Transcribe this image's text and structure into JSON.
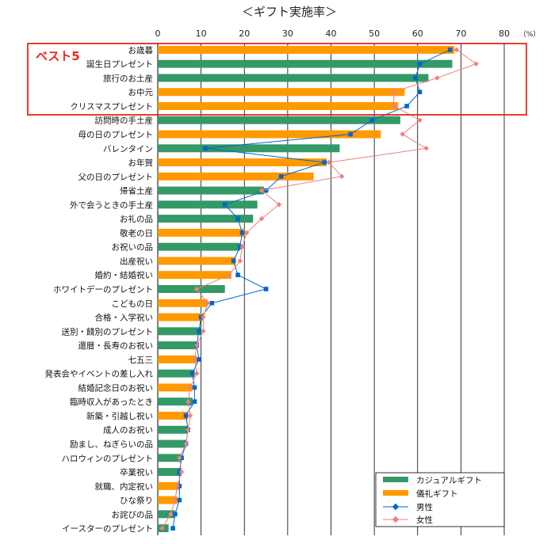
{
  "chart_data": {
    "type": "bar",
    "title": "＜ギフト実施率＞",
    "unit_label": "（%）",
    "xlim": [
      0,
      80
    ],
    "xticks": [
      0,
      10,
      20,
      30,
      40,
      50,
      60,
      70,
      80
    ],
    "grid": "vertical",
    "legend_position": "bottom-right",
    "highlight_label": "ベスト5",
    "highlight_categories": 5,
    "categories": [
      "お歳暮",
      "誕生日プレゼント",
      "旅行のお土産",
      "お中元",
      "クリスマスプレゼント",
      "訪問時の手土産",
      "母の日のプレゼント",
      "バレンタイン",
      "お年賀",
      "父の日のプレゼント",
      "帰省土産",
      "外で会うときの手土産",
      "お礼の品",
      "敬老の日",
      "お祝いの品",
      "出産祝い",
      "婚約・結婚祝い",
      "ホワイトデーのプレゼント",
      "こどもの日",
      "合格・入学祝い",
      "送別・餞別のプレゼント",
      "還暦・長寿のお祝い",
      "七五三",
      "発表会やイベントの差し入れ",
      "結婚記念日のお祝い",
      "臨時収入があったとき",
      "新築・引越し祝い",
      "成人のお祝い",
      "励まし、ねぎらいの品",
      "ハロウィンのプレゼント",
      "卒業祝い",
      "就職、内定祝い",
      "ひな祭り",
      "お詫びの品",
      "イースターのプレゼント"
    ],
    "bar_kind": [
      "formal",
      "casual",
      "casual",
      "formal",
      "formal",
      "casual",
      "formal",
      "casual",
      "formal",
      "formal",
      "casual",
      "casual",
      "casual",
      "formal",
      "casual",
      "formal",
      "formal",
      "casual",
      "formal",
      "formal",
      "casual",
      "casual",
      "formal",
      "casual",
      "formal",
      "casual",
      "formal",
      "casual",
      "casual",
      "casual",
      "casual",
      "formal",
      "formal",
      "casual",
      "casual"
    ],
    "values": [
      68.5,
      68.0,
      62.5,
      57.0,
      55.5,
      56.0,
      51.5,
      42.0,
      39.0,
      36.0,
      24.5,
      23.0,
      22.0,
      20.0,
      19.0,
      18.0,
      17.0,
      15.5,
      11.5,
      10.5,
      10.0,
      9.0,
      9.0,
      8.5,
      8.0,
      8.0,
      7.0,
      7.0,
      6.5,
      5.5,
      5.5,
      5.0,
      4.5,
      4.0,
      2.5
    ],
    "series": [
      {
        "name": "カジュアルギフト",
        "color": "#339966",
        "kind": "bar"
      },
      {
        "name": "儀礼ギフト",
        "color": "#ff9900",
        "kind": "bar"
      },
      {
        "name": "男性",
        "color": "#0066cc",
        "kind": "line",
        "values": [
          67.5,
          60.5,
          59.5,
          60.5,
          57.5,
          49.5,
          44.5,
          11.0,
          38.5,
          28.5,
          25.0,
          15.5,
          18.5,
          19.5,
          19.0,
          17.5,
          18.5,
          25.0,
          12.5,
          10.0,
          9.5,
          9.0,
          9.5,
          8.0,
          8.5,
          8.5,
          6.5,
          7.0,
          6.5,
          5.5,
          5.0,
          5.0,
          5.0,
          4.0,
          3.5
        ]
      },
      {
        "name": "女性",
        "color": "#f08080",
        "kind": "line",
        "values": [
          69.0,
          73.5,
          64.5,
          54.5,
          54.5,
          60.5,
          56.5,
          62.0,
          39.5,
          42.5,
          24.0,
          28.0,
          24.0,
          20.5,
          19.5,
          19.0,
          16.5,
          9.0,
          11.5,
          10.5,
          10.5,
          9.0,
          8.5,
          9.0,
          7.5,
          7.0,
          7.5,
          7.0,
          6.5,
          5.0,
          5.5,
          4.5,
          4.0,
          3.0,
          1.0
        ]
      }
    ]
  }
}
